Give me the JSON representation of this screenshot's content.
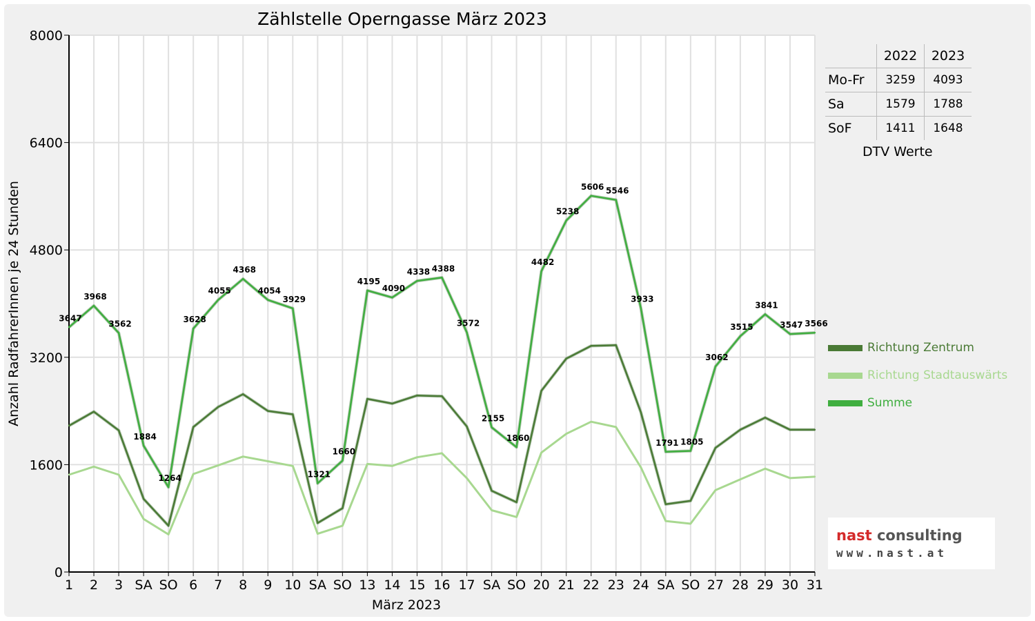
{
  "chart_data": {
    "type": "line",
    "title": "Zählstelle Operngasse März 2023",
    "xlabel": "März 2023",
    "ylabel": "Anzahl RadfahrerInnen je 24 Stunden",
    "ylim": [
      0,
      8000
    ],
    "yticks": [
      "0",
      "1600",
      "3200",
      "4800",
      "6400",
      "8000"
    ],
    "categories": [
      "1",
      "2",
      "3",
      "SA",
      "SO",
      "6",
      "7",
      "8",
      "9",
      "10",
      "SA",
      "SO",
      "13",
      "14",
      "15",
      "16",
      "17",
      "SA",
      "SO",
      "20",
      "21",
      "22",
      "23",
      "24",
      "SA",
      "SO",
      "27",
      "28",
      "29",
      "30",
      "31"
    ],
    "weekend_label_color": "#ff0000",
    "grid": true,
    "legend_position": "right",
    "series": [
      {
        "name": "Richtung Zentrum",
        "color": "#4a7a35",
        "values": [
          2180,
          2390,
          2110,
          1090,
          690,
          2160,
          2460,
          2650,
          2400,
          2350,
          730,
          950,
          2580,
          2510,
          2630,
          2620,
          2170,
          1210,
          1040,
          2700,
          3180,
          3370,
          3380,
          2380,
          1010,
          1060,
          1850,
          2120,
          2300,
          2120,
          2120
        ]
      },
      {
        "name": "Richtung Stadtauswärts",
        "color": "#a8d890",
        "values": [
          1450,
          1570,
          1450,
          790,
          560,
          1460,
          1590,
          1720,
          1650,
          1580,
          570,
          690,
          1610,
          1580,
          1710,
          1770,
          1400,
          920,
          820,
          1780,
          2060,
          2240,
          2160,
          1560,
          760,
          720,
          1220,
          1380,
          1540,
          1400,
          1420
        ]
      },
      {
        "name": "Summe",
        "color": "#3fae3f",
        "values": [
          3647,
          3968,
          3562,
          1884,
          1264,
          3628,
          4055,
          4368,
          4054,
          3929,
          1321,
          1660,
          4195,
          4090,
          4338,
          4388,
          3572,
          2155,
          1860,
          4482,
          5238,
          5606,
          5546,
          3933,
          1791,
          1805,
          3062,
          3515,
          3841,
          3547,
          3566
        ]
      }
    ],
    "data_labels": [
      "3647",
      "3968",
      "3562",
      "1884",
      "1264",
      "3628",
      "4055",
      "4368",
      "4054",
      "3929",
      "1321",
      "1660",
      "4195",
      "4090",
      "4338",
      "4388",
      "3572",
      "2155",
      "1860",
      "4482",
      "5238",
      "5606",
      "5546",
      "3933",
      "1791",
      "1805",
      "3062",
      "3515",
      "3841",
      "3547",
      "3566"
    ]
  },
  "dtv_table": {
    "header": [
      "",
      "2022",
      "2023"
    ],
    "rows": [
      {
        "label": "Mo-Fr",
        "v2022": "3259",
        "v2023": "4093"
      },
      {
        "label": "Sa",
        "v2022": "1579",
        "v2023": "1788"
      },
      {
        "label": "SoF",
        "v2022": "1411",
        "v2023": "1648"
      }
    ],
    "caption": "DTV Werte"
  },
  "logo": {
    "name_part1": "nast",
    "name_part2": " consulting",
    "url": "www.nast.at",
    "color_part1": "#d42a2a",
    "color_part2": "#555555"
  }
}
